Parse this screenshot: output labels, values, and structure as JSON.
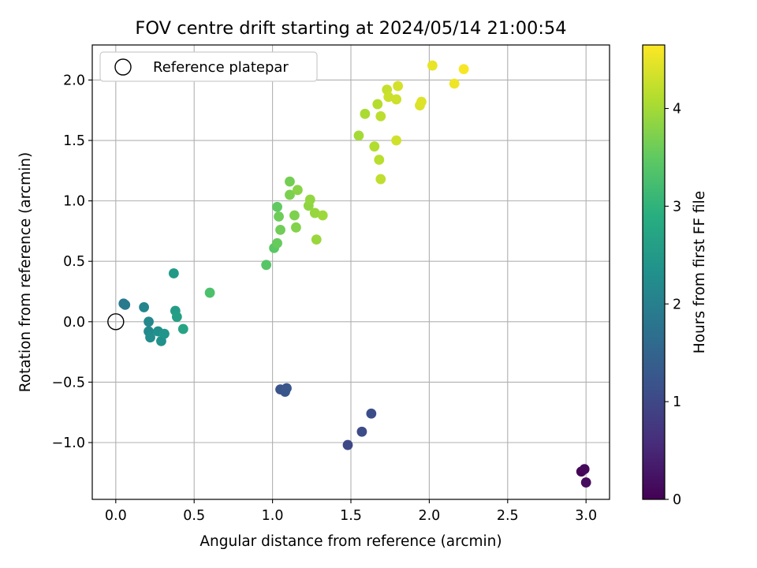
{
  "chart_data": {
    "type": "scatter",
    "title": "FOV centre drift starting at 2024/05/14 21:00:54",
    "xlabel": "Angular distance from reference (arcmin)",
    "ylabel": "Rotation from reference (arcmin)",
    "xlim": [
      -0.15,
      3.15
    ],
    "ylim": [
      -1.47,
      2.29
    ],
    "x_ticks": [
      0.0,
      0.5,
      1.0,
      1.5,
      2.0,
      2.5,
      3.0
    ],
    "x_tick_labels": [
      "0.0",
      "0.5",
      "1.0",
      "1.5",
      "2.0",
      "2.5",
      "3.0"
    ],
    "y_ticks": [
      -1.0,
      -0.5,
      0.0,
      0.5,
      1.0,
      1.5,
      2.0
    ],
    "y_tick_labels": [
      "−1.0",
      "−0.5",
      "0.0",
      "0.5",
      "1.0",
      "1.5",
      "2.0"
    ],
    "grid": true,
    "legend": {
      "position": "top-left",
      "label": "Reference platepar"
    },
    "reference_point": {
      "x": 0.0,
      "y": 0.0
    },
    "colorbar": {
      "label": "Hours from first FF file",
      "range": [
        0,
        4.65
      ],
      "ticks": [
        0,
        1,
        2,
        3,
        4
      ],
      "tick_labels": [
        "0",
        "1",
        "2",
        "3",
        "4"
      ],
      "colormap": "viridis"
    },
    "points": [
      {
        "x": 2.97,
        "y": -1.24,
        "t": 0.05
      },
      {
        "x": 2.99,
        "y": -1.22,
        "t": 0.1
      },
      {
        "x": 3.0,
        "y": -1.33,
        "t": 0.15
      },
      {
        "x": 1.48,
        "y": -1.02,
        "t": 1.0
      },
      {
        "x": 1.57,
        "y": -0.91,
        "t": 1.05
      },
      {
        "x": 1.63,
        "y": -0.76,
        "t": 1.1
      },
      {
        "x": 1.05,
        "y": -0.56,
        "t": 1.2
      },
      {
        "x": 1.08,
        "y": -0.58,
        "t": 1.22
      },
      {
        "x": 1.09,
        "y": -0.55,
        "t": 1.25
      },
      {
        "x": 0.05,
        "y": 0.15,
        "t": 1.85
      },
      {
        "x": 0.06,
        "y": 0.14,
        "t": 1.9
      },
      {
        "x": 0.18,
        "y": 0.12,
        "t": 2.1
      },
      {
        "x": 0.21,
        "y": 0.0,
        "t": 2.15
      },
      {
        "x": 0.21,
        "y": -0.08,
        "t": 2.2
      },
      {
        "x": 0.22,
        "y": -0.13,
        "t": 2.25
      },
      {
        "x": 0.27,
        "y": -0.08,
        "t": 2.3
      },
      {
        "x": 0.29,
        "y": -0.16,
        "t": 2.35
      },
      {
        "x": 0.31,
        "y": -0.1,
        "t": 2.4
      },
      {
        "x": 0.37,
        "y": 0.4,
        "t": 2.5
      },
      {
        "x": 0.38,
        "y": 0.09,
        "t": 2.55
      },
      {
        "x": 0.39,
        "y": 0.04,
        "t": 2.6
      },
      {
        "x": 0.43,
        "y": -0.06,
        "t": 2.7
      },
      {
        "x": 0.6,
        "y": 0.24,
        "t": 3.3
      },
      {
        "x": 0.96,
        "y": 0.47,
        "t": 3.4
      },
      {
        "x": 1.01,
        "y": 0.61,
        "t": 3.45
      },
      {
        "x": 1.03,
        "y": 0.95,
        "t": 3.5
      },
      {
        "x": 1.03,
        "y": 0.65,
        "t": 3.55
      },
      {
        "x": 1.04,
        "y": 0.87,
        "t": 3.6
      },
      {
        "x": 1.05,
        "y": 0.76,
        "t": 3.62
      },
      {
        "x": 1.11,
        "y": 1.16,
        "t": 3.65
      },
      {
        "x": 1.11,
        "y": 1.05,
        "t": 3.7
      },
      {
        "x": 1.14,
        "y": 0.88,
        "t": 3.72
      },
      {
        "x": 1.15,
        "y": 0.78,
        "t": 3.75
      },
      {
        "x": 1.16,
        "y": 1.09,
        "t": 3.8
      },
      {
        "x": 1.23,
        "y": 0.96,
        "t": 3.85
      },
      {
        "x": 1.24,
        "y": 1.01,
        "t": 3.87
      },
      {
        "x": 1.27,
        "y": 0.9,
        "t": 3.9
      },
      {
        "x": 1.28,
        "y": 0.68,
        "t": 3.92
      },
      {
        "x": 1.32,
        "y": 0.88,
        "t": 3.95
      },
      {
        "x": 1.55,
        "y": 1.54,
        "t": 4.0
      },
      {
        "x": 1.59,
        "y": 1.72,
        "t": 4.05
      },
      {
        "x": 1.65,
        "y": 1.45,
        "t": 4.1
      },
      {
        "x": 1.67,
        "y": 1.8,
        "t": 4.12
      },
      {
        "x": 1.68,
        "y": 1.34,
        "t": 4.15
      },
      {
        "x": 1.69,
        "y": 1.7,
        "t": 4.18
      },
      {
        "x": 1.69,
        "y": 1.18,
        "t": 4.2
      },
      {
        "x": 1.73,
        "y": 1.92,
        "t": 4.25
      },
      {
        "x": 1.74,
        "y": 1.86,
        "t": 4.28
      },
      {
        "x": 1.79,
        "y": 1.84,
        "t": 4.3
      },
      {
        "x": 1.79,
        "y": 1.5,
        "t": 4.32
      },
      {
        "x": 1.8,
        "y": 1.95,
        "t": 4.35
      },
      {
        "x": 1.94,
        "y": 1.79,
        "t": 4.4
      },
      {
        "x": 1.95,
        "y": 1.82,
        "t": 4.42
      },
      {
        "x": 2.02,
        "y": 2.12,
        "t": 4.5
      },
      {
        "x": 2.16,
        "y": 1.97,
        "t": 4.55
      },
      {
        "x": 2.22,
        "y": 2.09,
        "t": 4.6
      }
    ]
  }
}
